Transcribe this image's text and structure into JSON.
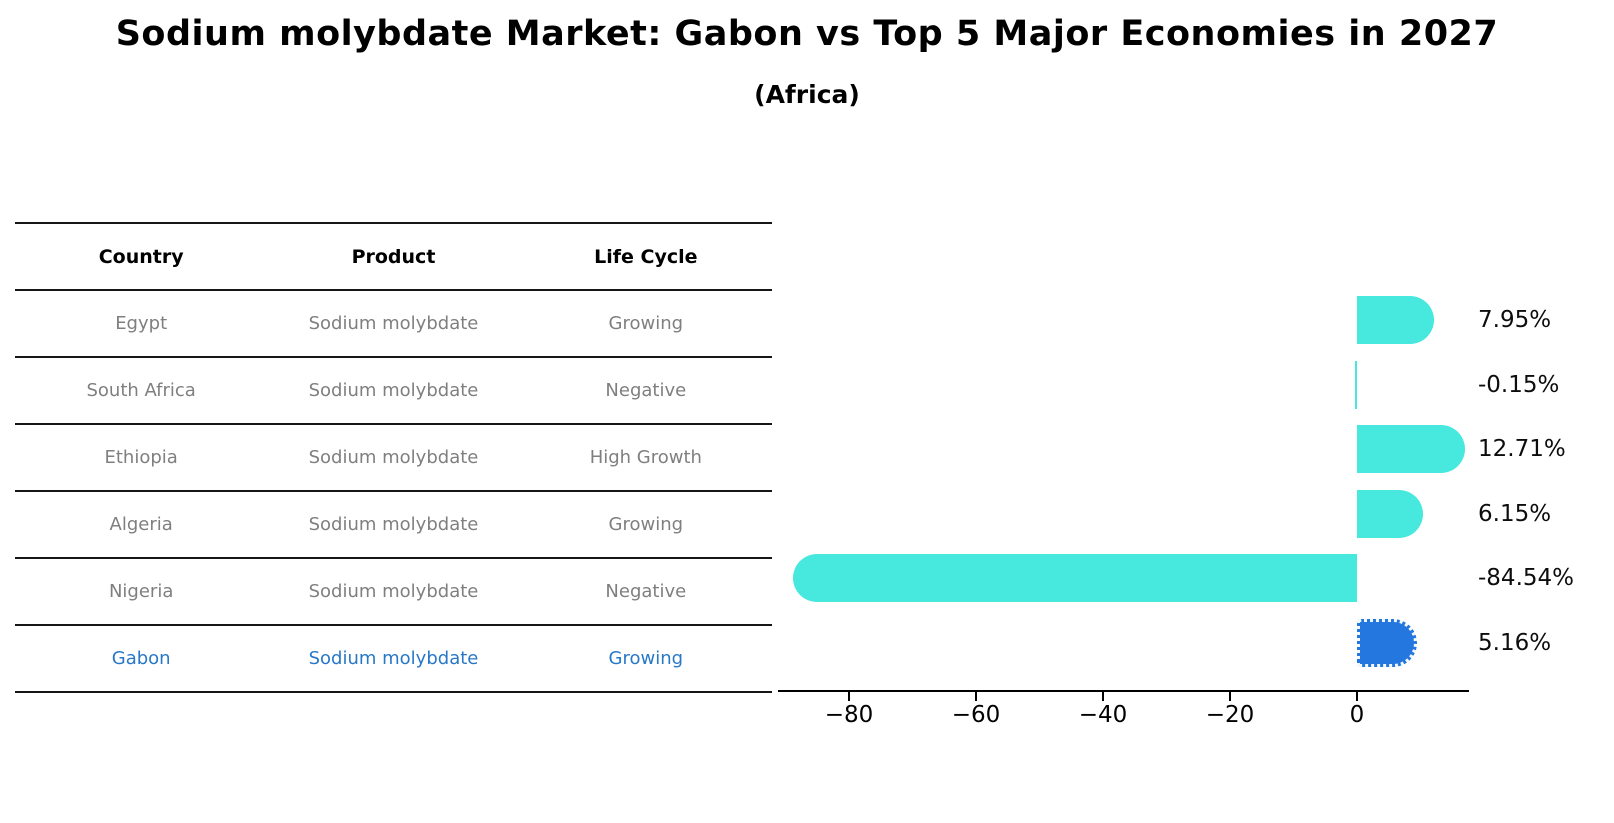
{
  "title": "Sodium molybdate Market: Gabon vs Top 5 Major Economies in 2027",
  "subtitle": "(Africa)",
  "table": {
    "headers": [
      "Country",
      "Product",
      "Life Cycle"
    ],
    "rows": [
      {
        "country": "Egypt",
        "product": "Sodium molybdate",
        "life_cycle": "Growing",
        "highlight": false
      },
      {
        "country": "South Africa",
        "product": "Sodium molybdate",
        "life_cycle": "Negative",
        "highlight": false
      },
      {
        "country": "Ethiopia",
        "product": "Sodium molybdate",
        "life_cycle": "High Growth",
        "highlight": false
      },
      {
        "country": "Algeria",
        "product": "Sodium molybdate",
        "life_cycle": "Growing",
        "highlight": false
      },
      {
        "country": "Nigeria",
        "product": "Sodium molybdate",
        "life_cycle": "Negative",
        "highlight": false
      },
      {
        "country": "Gabon",
        "product": "Sodium molybdate",
        "life_cycle": "Growing",
        "highlight": true
      }
    ]
  },
  "chart_data": {
    "type": "bar",
    "orientation": "horizontal",
    "title": "Sodium molybdate Market: Gabon vs Top 5 Major Economies in 2027 (Africa)",
    "categories": [
      "Egypt",
      "South Africa",
      "Ethiopia",
      "Algeria",
      "Nigeria",
      "Gabon"
    ],
    "values": [
      7.95,
      -0.15,
      12.71,
      6.15,
      -84.54,
      5.16
    ],
    "value_labels": [
      "7.95%",
      "-0.15%",
      "12.71%",
      "6.15%",
      "-84.54%",
      "5.16%"
    ],
    "unit": "percent",
    "x_ticks": [
      -80,
      -60,
      -40,
      -20,
      0
    ],
    "x_tick_labels": [
      "−80",
      "−60",
      "−40",
      "−20",
      "0"
    ],
    "xlim": [
      -91,
      17.6
    ],
    "grid": false,
    "legend": false,
    "highlight_index": 5
  },
  "colors": {
    "bar": "#47E8DD",
    "highlight_bar": "#2377DE",
    "highlight_text": "#2878C8",
    "table_text": "#7f7f7f",
    "heading_text": "#000000"
  }
}
